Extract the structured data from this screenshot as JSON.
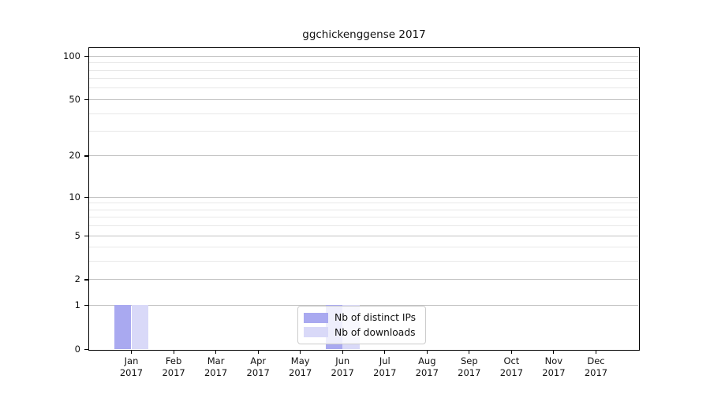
{
  "chart_data": {
    "type": "bar",
    "title": "ggchickenggense 2017",
    "categories": [
      "Jan",
      "Feb",
      "Mar",
      "Apr",
      "May",
      "Jun",
      "Jul",
      "Aug",
      "Sep",
      "Oct",
      "Nov",
      "Dec"
    ],
    "year_label": "2017",
    "series": [
      {
        "name": "Nb of distinct IPs",
        "color": "#a9a9f0",
        "values": [
          1,
          0,
          0,
          0,
          0,
          1,
          0,
          0,
          0,
          0,
          0,
          0
        ]
      },
      {
        "name": "Nb of downloads",
        "color": "#d9d9f8",
        "values": [
          1,
          0,
          0,
          0,
          0,
          1,
          0,
          0,
          0,
          0,
          0,
          0
        ]
      }
    ],
    "yscale": "log1p",
    "ylim": [
      0,
      113
    ],
    "y_major_ticks": [
      0,
      1,
      2,
      5,
      10,
      20,
      50,
      100
    ],
    "y_minor_ticks": [
      3,
      4,
      6,
      7,
      8,
      9,
      30,
      40,
      60,
      70,
      80,
      90
    ],
    "grid": "horizontal",
    "legend_position": "lower center",
    "axis_color": "#000000",
    "major_grid_color": "#c2c2c2",
    "minor_grid_color": "#e8e8e8"
  }
}
